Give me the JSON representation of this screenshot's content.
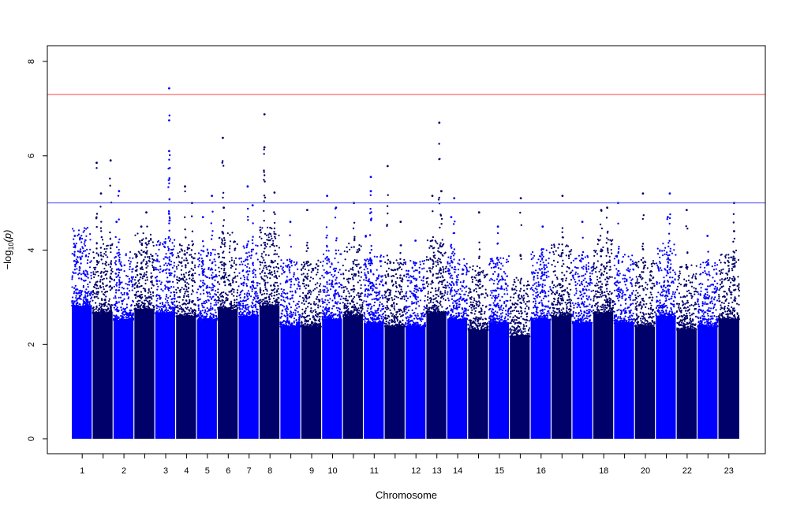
{
  "chart_data": {
    "type": "scatter",
    "title": "",
    "xlabel": "Chromosome",
    "ylabel_parts": {
      "prefix": "−log",
      "subscript": "10",
      "suffix": "(p)"
    },
    "ylim": [
      0,
      8
    ],
    "yticks": [
      "0",
      "2",
      "4",
      "6",
      "8"
    ],
    "grid": false,
    "legend": "none",
    "colors": {
      "alternating": [
        "#0000FF",
        "#00006B"
      ],
      "genome_wide_line": "#FF4040",
      "suggestive_line": "#4040FF"
    },
    "thresholds": [
      {
        "label": "genome_wide",
        "y": 7.3
      },
      {
        "label": "suggestive",
        "y": 5.0
      }
    ],
    "chromosomes": [
      {
        "label": "1",
        "tick_label": "1",
        "ceiling": 3.9,
        "peaks": [
          {
            "frac": 0.15,
            "y": 4.3
          },
          {
            "frac": 0.42,
            "y": 4.25
          }
        ]
      },
      {
        "label": "2",
        "tick_label": "",
        "ceiling": 3.7,
        "peaks": [
          {
            "frac": 0.2,
            "y": 5.85
          },
          {
            "frac": 0.42,
            "y": 5.2
          },
          {
            "frac": 0.9,
            "y": 5.9
          }
        ]
      },
      {
        "label": "3",
        "tick_label": "2",
        "ceiling": 3.5,
        "peaks": [
          {
            "frac": 0.28,
            "y": 5.25
          },
          {
            "frac": 0.15,
            "y": 4.6
          }
        ]
      },
      {
        "label": "4",
        "tick_label": "",
        "ceiling": 3.8,
        "peaks": [
          {
            "frac": 0.6,
            "y": 4.8
          },
          {
            "frac": 0.35,
            "y": 4.5
          }
        ]
      },
      {
        "label": "5",
        "tick_label": "3",
        "ceiling": 3.7,
        "peaks": [
          {
            "frac": 0.7,
            "y": 7.43
          },
          {
            "frac": 0.7,
            "y": 6.75
          },
          {
            "frac": 0.7,
            "y": 6.1
          }
        ]
      },
      {
        "label": "6",
        "tick_label": "4",
        "ceiling": 3.6,
        "peaks": [
          {
            "frac": 0.45,
            "y": 5.35
          },
          {
            "frac": 0.8,
            "y": 5.0
          }
        ]
      },
      {
        "label": "7",
        "tick_label": "5",
        "ceiling": 3.5,
        "peaks": [
          {
            "frac": 0.75,
            "y": 5.15
          },
          {
            "frac": 0.3,
            "y": 4.7
          }
        ]
      },
      {
        "label": "8",
        "tick_label": "6",
        "ceiling": 3.8,
        "peaks": [
          {
            "frac": 0.25,
            "y": 6.38
          },
          {
            "frac": 0.3,
            "y": 4.9
          }
        ]
      },
      {
        "label": "9",
        "tick_label": "7",
        "ceiling": 3.6,
        "peaks": [
          {
            "frac": 0.45,
            "y": 5.35
          },
          {
            "frac": 0.7,
            "y": 4.95
          }
        ]
      },
      {
        "label": "10",
        "tick_label": "8",
        "ceiling": 3.9,
        "peaks": [
          {
            "frac": 0.25,
            "y": 6.88
          },
          {
            "frac": 0.25,
            "y": 6.18
          },
          {
            "frac": 0.75,
            "y": 5.22
          }
        ]
      },
      {
        "label": "11",
        "tick_label": "",
        "ceiling": 3.3,
        "peaks": [
          {
            "frac": 0.5,
            "y": 4.6
          }
        ]
      },
      {
        "label": "12",
        "tick_label": "9",
        "ceiling": 3.3,
        "peaks": [
          {
            "frac": 0.3,
            "y": 4.85
          }
        ]
      },
      {
        "label": "13",
        "tick_label": "10",
        "ceiling": 3.5,
        "peaks": [
          {
            "frac": 0.25,
            "y": 5.15
          },
          {
            "frac": 0.7,
            "y": 4.9
          }
        ]
      },
      {
        "label": "14",
        "tick_label": "",
        "ceiling": 3.6,
        "peaks": [
          {
            "frac": 0.55,
            "y": 5.0
          }
        ]
      },
      {
        "label": "15",
        "tick_label": "11",
        "ceiling": 3.4,
        "peaks": [
          {
            "frac": 0.35,
            "y": 5.55
          },
          {
            "frac": 0.35,
            "y": 5.25
          },
          {
            "frac": 0.1,
            "y": 4.3
          }
        ]
      },
      {
        "label": "16",
        "tick_label": "",
        "ceiling": 3.3,
        "peaks": [
          {
            "frac": 0.15,
            "y": 5.78
          },
          {
            "frac": 0.8,
            "y": 4.6
          }
        ]
      },
      {
        "label": "17",
        "tick_label": "12",
        "ceiling": 3.3,
        "peaks": [
          {
            "frac": 0.5,
            "y": 4.2
          }
        ]
      },
      {
        "label": "18",
        "tick_label": "13",
        "ceiling": 3.7,
        "peaks": [
          {
            "frac": 0.3,
            "y": 5.15
          },
          {
            "frac": 0.65,
            "y": 6.7
          },
          {
            "frac": 0.75,
            "y": 5.25
          }
        ]
      },
      {
        "label": "19",
        "tick_label": "14",
        "ceiling": 3.5,
        "peaks": [
          {
            "frac": 0.35,
            "y": 5.1
          },
          {
            "frac": 0.2,
            "y": 4.7
          }
        ]
      },
      {
        "label": "20",
        "tick_label": "",
        "ceiling": 3.2,
        "peaks": [
          {
            "frac": 0.55,
            "y": 4.8
          }
        ]
      },
      {
        "label": "21",
        "tick_label": "15",
        "ceiling": 3.4,
        "peaks": [
          {
            "frac": 0.45,
            "y": 4.5
          }
        ]
      },
      {
        "label": "22",
        "tick_label": "",
        "ceiling": 3.0,
        "peaks": [
          {
            "frac": 0.55,
            "y": 5.1
          }
        ]
      },
      {
        "label": "23",
        "tick_label": "16",
        "ceiling": 3.5,
        "peaks": [
          {
            "frac": 0.6,
            "y": 4.5
          }
        ]
      },
      {
        "label": "24",
        "tick_label": "",
        "ceiling": 3.6,
        "peaks": [
          {
            "frac": 0.55,
            "y": 5.15
          }
        ]
      },
      {
        "label": "25",
        "tick_label": "",
        "ceiling": 3.4,
        "peaks": [
          {
            "frac": 0.5,
            "y": 4.6
          }
        ]
      },
      {
        "label": "26",
        "tick_label": "18",
        "ceiling": 3.7,
        "peaks": [
          {
            "frac": 0.4,
            "y": 4.85
          },
          {
            "frac": 0.7,
            "y": 4.9
          }
        ]
      },
      {
        "label": "27",
        "tick_label": "",
        "ceiling": 3.4,
        "peaks": [
          {
            "frac": 0.2,
            "y": 5.0
          }
        ]
      },
      {
        "label": "28",
        "tick_label": "20",
        "ceiling": 3.3,
        "peaks": [
          {
            "frac": 0.4,
            "y": 5.2
          }
        ]
      },
      {
        "label": "29",
        "tick_label": "",
        "ceiling": 3.6,
        "peaks": [
          {
            "frac": 0.6,
            "y": 4.7
          },
          {
            "frac": 0.7,
            "y": 5.2
          }
        ]
      },
      {
        "label": "30",
        "tick_label": "22",
        "ceiling": 3.2,
        "peaks": [
          {
            "frac": 0.5,
            "y": 4.85
          }
        ]
      },
      {
        "label": "31",
        "tick_label": "",
        "ceiling": 3.3,
        "peaks": [
          {
            "frac": 0.5,
            "y": 4.3
          }
        ]
      },
      {
        "label": "32",
        "tick_label": "23",
        "ceiling": 3.5,
        "peaks": [
          {
            "frac": 0.75,
            "y": 5.0
          },
          {
            "frac": 0.75,
            "y": 4.4
          }
        ]
      }
    ]
  }
}
